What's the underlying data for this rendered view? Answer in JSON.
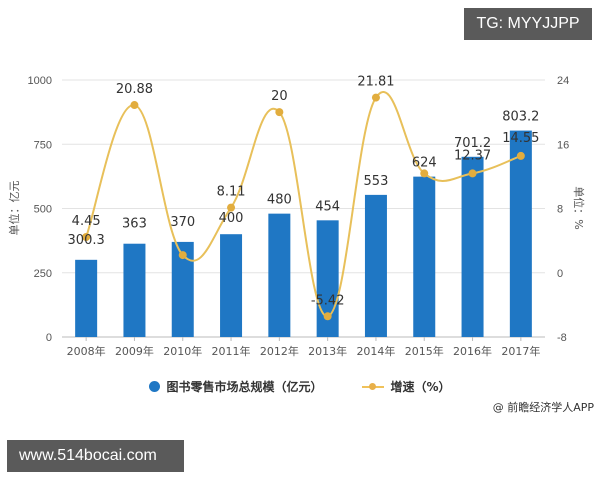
{
  "overlays": {
    "top_badge": "TG: MYYJJPP",
    "bottom_badge": "www.514bocai.com",
    "source": "@ 前瞻经济学人APP"
  },
  "legend": {
    "bar_label": "图书零售市场总规模（亿元）",
    "line_label": "增速（%）"
  },
  "colors": {
    "bar": "#1f77c4",
    "line": "#e8c05a",
    "marker": "#e2ad3e",
    "grid": "#e3e3e3",
    "axis_text": "#555555"
  },
  "chart_data": {
    "type": "bar+line",
    "title": "",
    "categories": [
      "2008年",
      "2009年",
      "2010年",
      "2011年",
      "2012年",
      "2013年",
      "2014年",
      "2015年",
      "2016年",
      "2017年"
    ],
    "series": [
      {
        "name": "图书零售市场总规模（亿元）",
        "type": "bar",
        "axis": "left",
        "values": [
          300.3,
          363,
          370,
          400,
          480,
          454,
          553,
          624,
          701.2,
          803.2
        ]
      },
      {
        "name": "增速（%）",
        "type": "line",
        "axis": "right",
        "values": [
          4.45,
          20.88,
          2.2,
          8.11,
          20,
          -5.42,
          21.81,
          12.37,
          12.37,
          14.55
        ],
        "labels": [
          "4.45",
          "20.88",
          "",
          "8.11",
          "20",
          "-5.42",
          "21.81",
          "",
          "12.37",
          "14.55"
        ]
      }
    ],
    "ylabel_left": "单位：亿元",
    "ylabel_right": "单位：%",
    "ylim_left": [
      0,
      1000
    ],
    "yticks_left": [
      0,
      250,
      500,
      750,
      1000
    ],
    "ylim_right": [
      -8,
      24
    ],
    "yticks_right": [
      -8,
      0,
      8,
      16,
      24
    ],
    "grid": true,
    "legend_position": "bottom"
  }
}
